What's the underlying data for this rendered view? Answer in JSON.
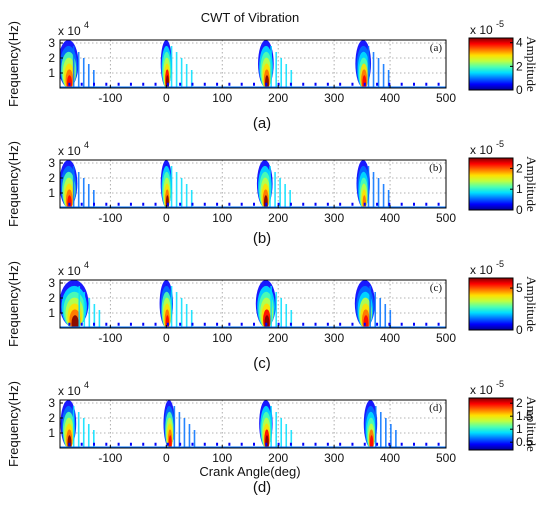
{
  "figure": {
    "title": "CWT of Vibration",
    "xlabel": "Crank Angle(deg)",
    "ylabel": "Frequency(Hz)",
    "y_multiplier": "x 10",
    "y_multiplier_exp": "4",
    "colorbar_label": "Amplitude",
    "colorbar_multiplier": "x 10",
    "colorbar_multiplier_exp": "-5"
  },
  "colors": {
    "background": "#ffffff",
    "axes_frame": "#000000",
    "grid": "#9a9a9a",
    "colormap": [
      "#00008f",
      "#0000ff",
      "#0070ff",
      "#00dfff",
      "#50ffaf",
      "#bfff40",
      "#ffdf00",
      "#ff7000",
      "#ff0000",
      "#800000"
    ]
  },
  "chart_data": [
    {
      "type": "heatmap",
      "panel_tag": "(a)",
      "caption": "(a)",
      "xlim": [
        -190,
        500
      ],
      "ylim": [
        0,
        3.2
      ],
      "x_ticks": [
        "-100",
        "0",
        "100",
        "200",
        "300",
        "400",
        "500"
      ],
      "y_ticks": [
        "1",
        "2",
        "3"
      ],
      "colorbar_ticks": [
        "4",
        "2",
        "0"
      ],
      "colorbar_range": [
        0,
        4.4
      ],
      "grid": true,
      "bursts": [
        {
          "center_deg": -175,
          "peak": 4.0,
          "width_deg": 18
        },
        {
          "center_deg": 0,
          "peak": 4.4,
          "width_deg": 10
        },
        {
          "center_deg": 178,
          "peak": 4.2,
          "width_deg": 14
        },
        {
          "center_deg": 352,
          "peak": 3.8,
          "width_deg": 14
        }
      ]
    },
    {
      "type": "heatmap",
      "panel_tag": "(b)",
      "caption": "(b)",
      "xlim": [
        -190,
        500
      ],
      "ylim": [
        0,
        3.2
      ],
      "x_ticks": [
        "-100",
        "0",
        "100",
        "200",
        "300",
        "400",
        "500"
      ],
      "y_ticks": [
        "1",
        "2",
        "3"
      ],
      "colorbar_ticks": [
        "2",
        "1",
        "0"
      ],
      "colorbar_range": [
        0,
        2.5
      ],
      "grid": true,
      "bursts": [
        {
          "center_deg": -175,
          "peak": 2.3,
          "width_deg": 16
        },
        {
          "center_deg": 0,
          "peak": 2.4,
          "width_deg": 10
        },
        {
          "center_deg": 176,
          "peak": 2.4,
          "width_deg": 14
        },
        {
          "center_deg": 352,
          "peak": 2.0,
          "width_deg": 12
        }
      ]
    },
    {
      "type": "heatmap",
      "panel_tag": "(c)",
      "caption": "(c)",
      "xlim": [
        -190,
        500
      ],
      "ylim": [
        0,
        3.2
      ],
      "x_ticks": [
        "-100",
        "0",
        "100",
        "200",
        "300",
        "400",
        "500"
      ],
      "y_ticks": [
        "1",
        "2",
        "3"
      ],
      "colorbar_ticks": [
        "5",
        "0"
      ],
      "colorbar_range": [
        0,
        6.2
      ],
      "grid": true,
      "bursts": [
        {
          "center_deg": -165,
          "peak": 6.0,
          "width_deg": 26
        },
        {
          "center_deg": 0,
          "peak": 5.8,
          "width_deg": 12
        },
        {
          "center_deg": 178,
          "peak": 6.2,
          "width_deg": 18
        },
        {
          "center_deg": 355,
          "peak": 5.5,
          "width_deg": 18
        }
      ]
    },
    {
      "type": "heatmap",
      "panel_tag": "(d)",
      "caption": "(d)",
      "xlim": [
        -190,
        500
      ],
      "ylim": [
        0,
        3.2
      ],
      "x_ticks": [
        "-100",
        "0",
        "100",
        "200",
        "300",
        "400",
        "500"
      ],
      "y_ticks": [
        "1",
        "2",
        "3"
      ],
      "colorbar_ticks": [
        "2",
        "1.5",
        "1",
        "0.5"
      ],
      "colorbar_range": [
        0.2,
        2.2
      ],
      "grid": true,
      "bursts": [
        {
          "center_deg": -175,
          "peak": 2.1,
          "width_deg": 14
        },
        {
          "center_deg": 5,
          "peak": 2.0,
          "width_deg": 10
        },
        {
          "center_deg": 178,
          "peak": 2.2,
          "width_deg": 12
        },
        {
          "center_deg": 365,
          "peak": 1.9,
          "width_deg": 12
        }
      ]
    }
  ]
}
